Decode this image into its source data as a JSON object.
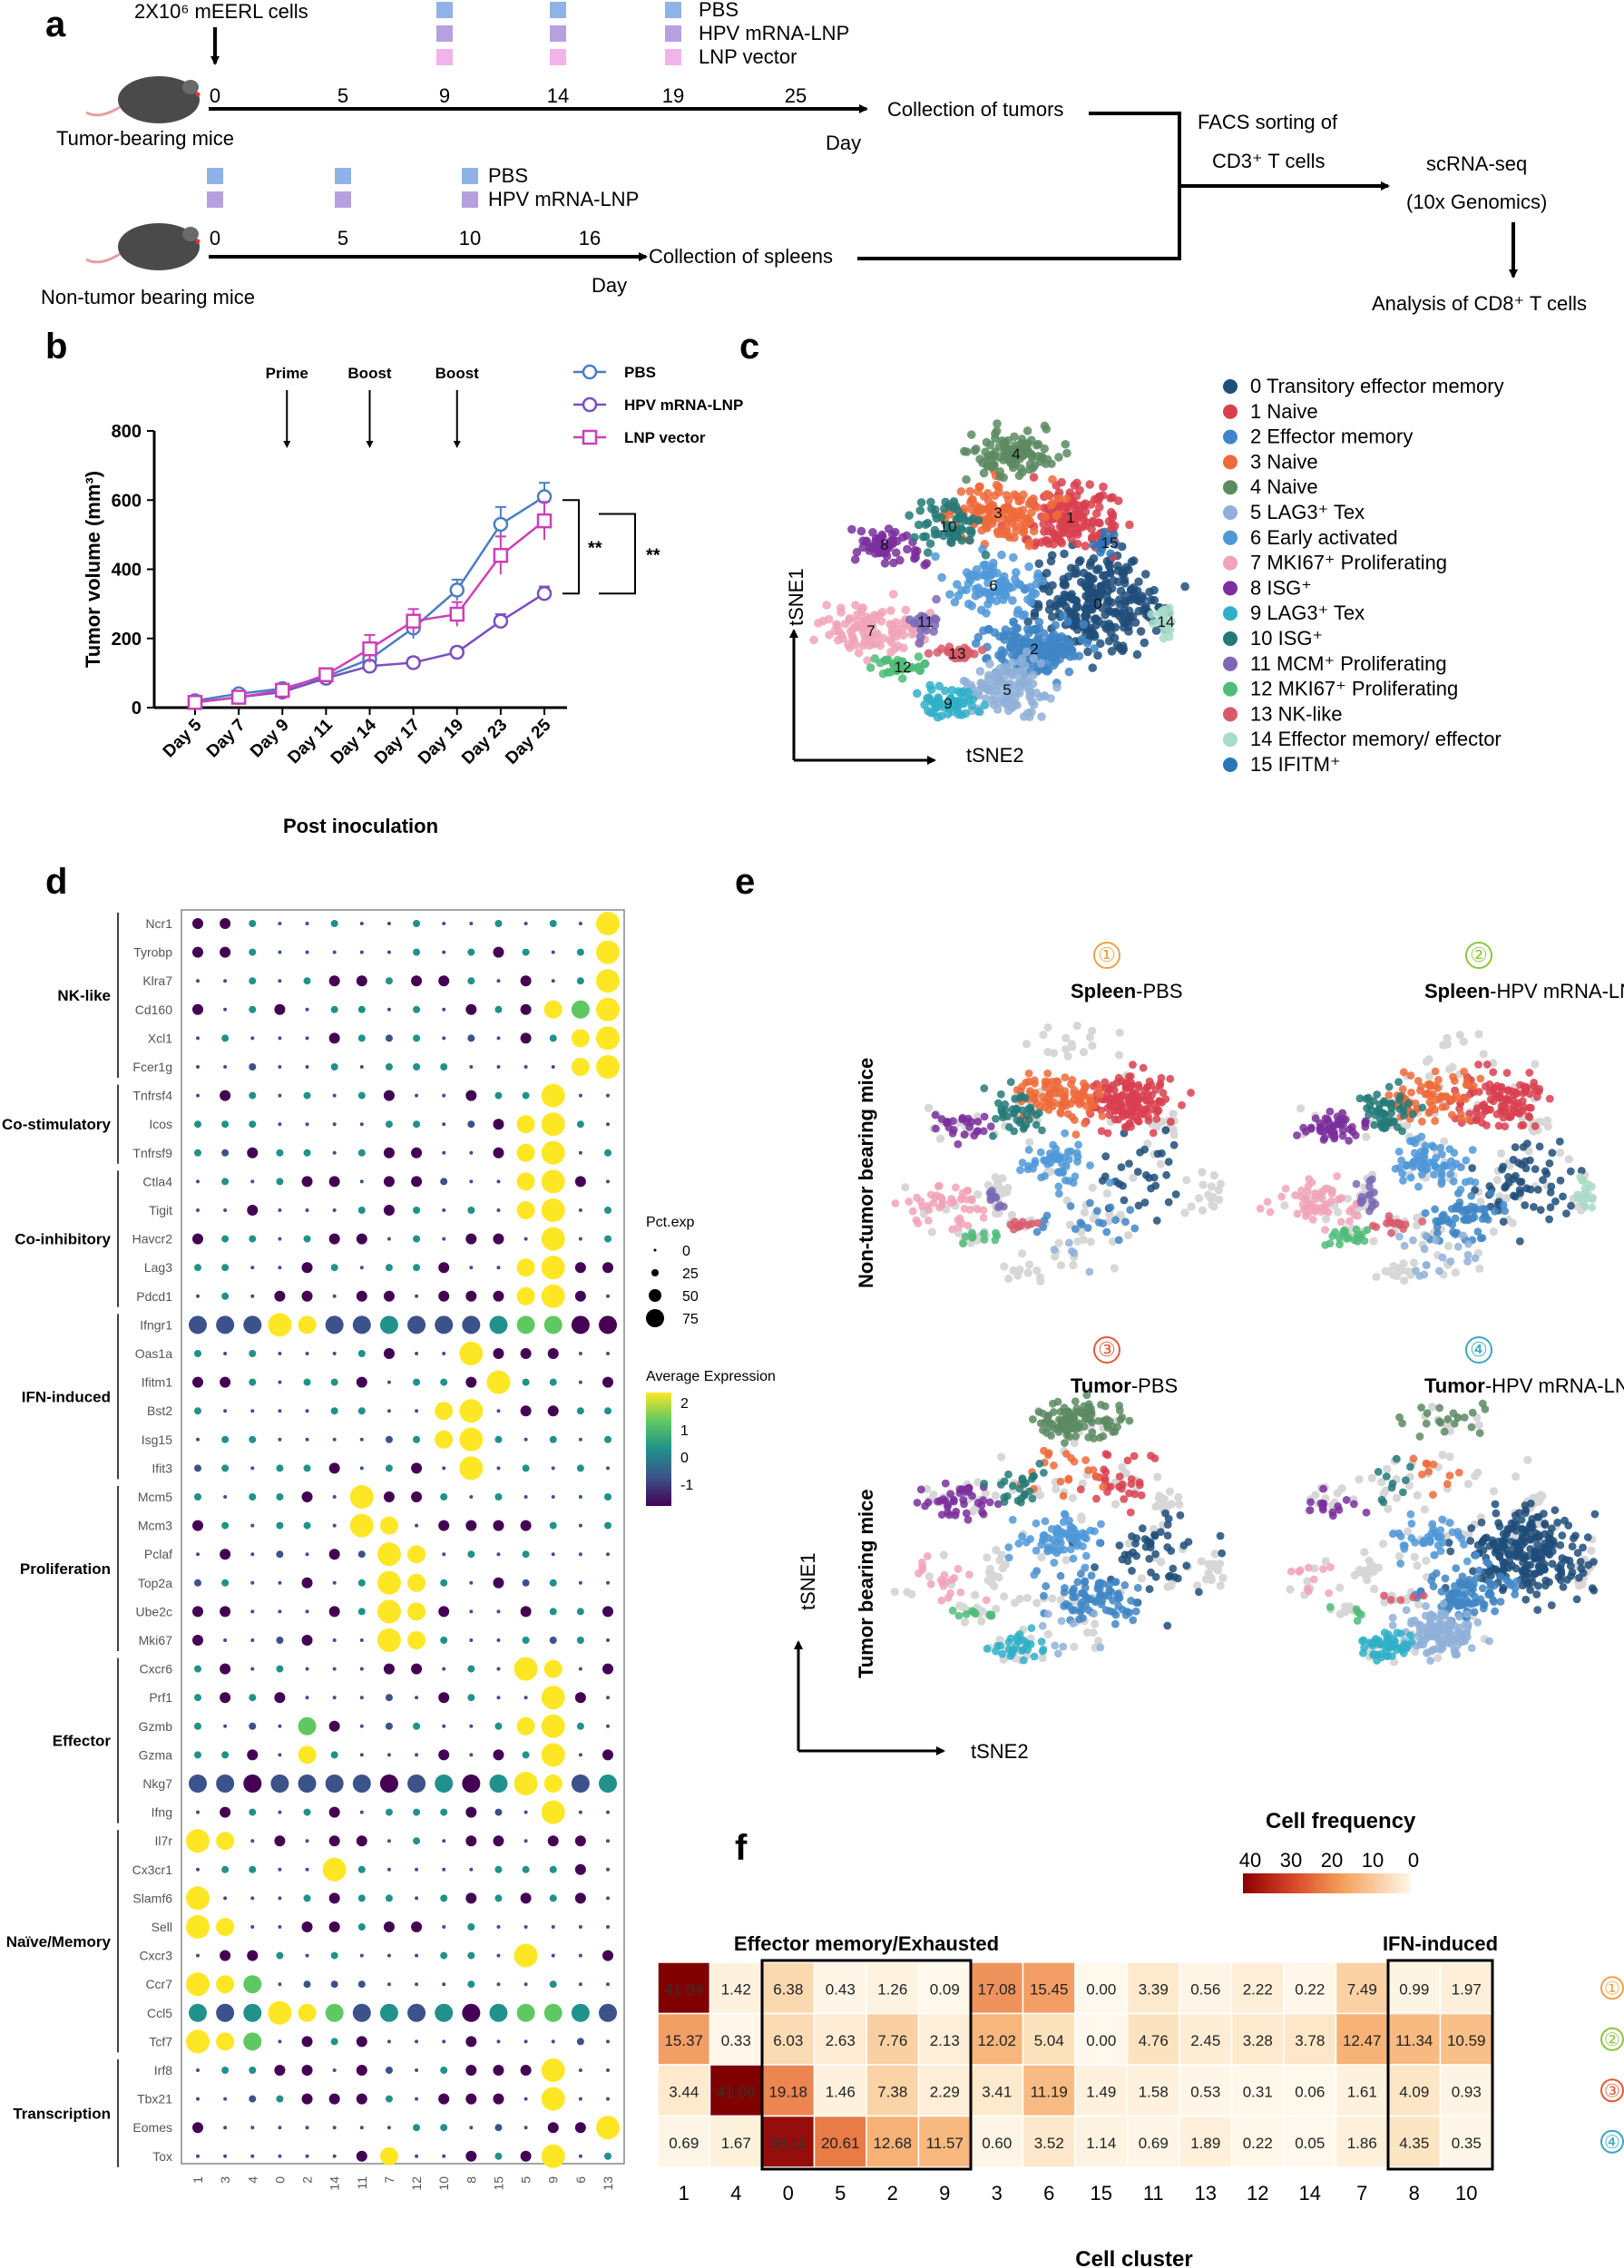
{
  "panel_labels": {
    "a": "a",
    "b": "b",
    "c": "c",
    "d": "d",
    "e": "e",
    "f": "f"
  },
  "panel_a": {
    "cells_label": "2X10⁶ mEERL cells",
    "legend_top": [
      "PBS",
      "HPV mRNA-LNP",
      "LNP vector"
    ],
    "legend_bottom": [
      "PBS",
      "HPV mRNA-LNP"
    ],
    "legend_colors": [
      "#8fb3e6",
      "#b7a0e0",
      "#f2b3ea"
    ],
    "tumor_days": [
      "0",
      "5",
      "9",
      "14",
      "19",
      "25"
    ],
    "spleen_days": [
      "0",
      "5",
      "10",
      "16"
    ],
    "day_label": "Day",
    "tumor_mice_label": "Tumor-bearing mice",
    "nontumor_mice_label": "Non-tumor bearing mice",
    "collect_tumors": "Collection of tumors",
    "collect_spleens": "Collection of spleens",
    "facs_line1": "FACS sorting of",
    "facs_line2": "CD3⁺ T cells",
    "scrna_line1": "scRNA-seq",
    "scrna_line2": "(10x Genomics)",
    "analysis": "Analysis of CD8⁺ T cells"
  },
  "panel_b": {
    "events": [
      "Prime",
      "Boost",
      "Boost"
    ],
    "significance": [
      "**",
      "**"
    ],
    "chart_data": {
      "type": "line",
      "ylabel": "Tumor volume (mm³)",
      "xlabel": "Post inoculation",
      "categories": [
        "Day 5",
        "Day 7",
        "Day 9",
        "Day 11",
        "Day 14",
        "Day 17",
        "Day 19",
        "Day 23",
        "Day 25"
      ],
      "ylim": [
        0,
        800
      ],
      "yticks": [
        "0",
        "200",
        "400",
        "600",
        "800"
      ],
      "series": [
        {
          "name": "PBS",
          "color": "#4a7fc1",
          "values": [
            20,
            40,
            55,
            90,
            140,
            230,
            340,
            530,
            610
          ],
          "err": [
            5,
            6,
            8,
            12,
            25,
            30,
            30,
            50,
            40
          ]
        },
        {
          "name": "HPV mRNA-LNP",
          "color": "#7a4fc0",
          "values": [
            15,
            30,
            45,
            85,
            120,
            130,
            160,
            250,
            330
          ],
          "err": [
            4,
            5,
            6,
            10,
            15,
            15,
            15,
            20,
            20
          ]
        },
        {
          "name": "LNP vector",
          "color": "#cc3fb8",
          "values": [
            15,
            30,
            50,
            95,
            170,
            250,
            270,
            440,
            540
          ],
          "err": [
            4,
            5,
            7,
            12,
            40,
            35,
            35,
            55,
            55
          ]
        }
      ]
    }
  },
  "panel_c": {
    "axis_y": "tSNE1",
    "axis_x": "tSNE2",
    "legend": [
      {
        "num": "0",
        "label": "Transitory effector memory",
        "color": "#1f4e79"
      },
      {
        "num": "1",
        "label": "Naive",
        "color": "#d9404f"
      },
      {
        "num": "2",
        "label": "Effector memory",
        "color": "#3f86c6"
      },
      {
        "num": "3",
        "label": "Naive",
        "color": "#ee6a3a"
      },
      {
        "num": "4",
        "label": "Naive",
        "color": "#5c8a61"
      },
      {
        "num": "5",
        "label": "LAG3⁺ Tex",
        "color": "#8fb0d8"
      },
      {
        "num": "6",
        "label": "Early activated",
        "color": "#4f98d8"
      },
      {
        "num": "7",
        "label": "MKI67⁺ Proliferating",
        "color": "#f1a3b8"
      },
      {
        "num": "8",
        "label": "ISG⁺",
        "color": "#7a2f9c"
      },
      {
        "num": "9",
        "label": "LAG3⁺ Tex",
        "color": "#30b0c8"
      },
      {
        "num": "10",
        "label": "ISG⁺",
        "color": "#247a78"
      },
      {
        "num": "11",
        "label": "MCM⁺ Proliferating",
        "color": "#7b68b5"
      },
      {
        "num": "12",
        "label": "MKI67⁺ Proliferating",
        "color": "#4fbc78"
      },
      {
        "num": "13",
        "label": "NK-like",
        "color": "#d9596a"
      },
      {
        "num": "14",
        "label": "Effector memory/ effector",
        "color": "#a8dcc8"
      },
      {
        "num": "15",
        "label": "IFITM⁺",
        "color": "#2a76b8"
      }
    ],
    "cluster_labels": [
      "4",
      "3",
      "1",
      "10",
      "8",
      "15",
      "6",
      "0",
      "7",
      "11",
      "13",
      "2",
      "14",
      "12",
      "5",
      "9"
    ]
  },
  "panel_d": {
    "genes": [
      "Ncr1",
      "Tyrobp",
      "Klra7",
      "Cd160",
      "Xcl1",
      "Fcer1g",
      "Tnfrsf4",
      "Icos",
      "Tnfrsf9",
      "Ctla4",
      "Tigit",
      "Havcr2",
      "Lag3",
      "Pdcd1",
      "Ifngr1",
      "Oas1a",
      "Ifitm1",
      "Bst2",
      "Isg15",
      "Ifit3",
      "Mcm5",
      "Mcm3",
      "Pclaf",
      "Top2a",
      "Ube2c",
      "Mki67",
      "Cxcr6",
      "Prf1",
      "Gzmb",
      "Gzma",
      "Nkg7",
      "Ifng",
      "Il7r",
      "Cx3cr1",
      "Slamf6",
      "Sell",
      "Cxcr3",
      "Ccr7",
      "Ccl5",
      "Tcf7",
      "Irf8",
      "Tbx21",
      "Eomes",
      "Tox"
    ],
    "clusters": [
      "1",
      "3",
      "4",
      "0",
      "2",
      "14",
      "11",
      "7",
      "12",
      "10",
      "8",
      "15",
      "5",
      "9",
      "6",
      "13"
    ],
    "groups": [
      {
        "name": "NK-like",
        "start": 0,
        "end": 5
      },
      {
        "name": "Co-stimulatory",
        "start": 6,
        "end": 8
      },
      {
        "name": "Co-inhibitory",
        "start": 9,
        "end": 13
      },
      {
        "name": "IFN-induced",
        "start": 14,
        "end": 19
      },
      {
        "name": "Proliferation",
        "start": 20,
        "end": 25
      },
      {
        "name": "Effector",
        "start": 26,
        "end": 31
      },
      {
        "name": "Naïve/Memory",
        "start": 32,
        "end": 39
      },
      {
        "name": "Transcription",
        "start": 40,
        "end": 43
      }
    ],
    "legend_size_title": "Pct.exp",
    "legend_size_values": [
      "0",
      "25",
      "50",
      "75"
    ],
    "legend_color_title": "Average Expression",
    "legend_color_values": [
      "2",
      "1",
      "0",
      "-1"
    ]
  },
  "panel_e": {
    "row_labels": [
      "Non-tumor bearing mice",
      "Tumor bearing mice"
    ],
    "panels": [
      {
        "num": "①",
        "bold": "Spleen",
        "rest": "-PBS",
        "color": "#f0a04b"
      },
      {
        "num": "②",
        "bold": "Spleen",
        "rest": "-HPV mRNA-LNP",
        "color": "#8cc63f"
      },
      {
        "num": "③",
        "bold": "Tumor",
        "rest": "-PBS",
        "color": "#e05a36"
      },
      {
        "num": "④",
        "bold": "Tumor",
        "rest": "-HPV mRNA-LNP",
        "color": "#3aa6c0"
      }
    ],
    "axis_y": "tSNE1",
    "axis_x": "tSNE2"
  },
  "panel_f": {
    "title": "Cell frequency",
    "scale_ticks": [
      "40",
      "30",
      "20",
      "10",
      "0"
    ],
    "group_labels": [
      "Effector memory/Exhausted",
      "IFN-induced"
    ],
    "columns": [
      "1",
      "4",
      "0",
      "5",
      "2",
      "9",
      "3",
      "6",
      "15",
      "11",
      "13",
      "12",
      "14",
      "7",
      "8",
      "10"
    ],
    "xlabel": "Cell cluster",
    "row_markers": [
      {
        "label": "①",
        "color": "#f0a04b"
      },
      {
        "label": "②",
        "color": "#8cc63f"
      },
      {
        "label": "③",
        "color": "#e05a36"
      },
      {
        "label": "④",
        "color": "#3aa6c0"
      }
    ],
    "values": [
      [
        "41.04",
        "1.42",
        "6.38",
        "0.43",
        "1.26",
        "0.09",
        "17.08",
        "15.45",
        "0.00",
        "3.39",
        "0.56",
        "2.22",
        "0.22",
        "7.49",
        "0.99",
        "1.97"
      ],
      [
        "15.37",
        "0.33",
        "6.03",
        "2.63",
        "7.76",
        "2.13",
        "12.02",
        "5.04",
        "0.00",
        "4.76",
        "2.45",
        "3.28",
        "3.78",
        "12.47",
        "11.34",
        "10.59"
      ],
      [
        "3.44",
        "41.06",
        "19.18",
        "1.46",
        "7.38",
        "2.29",
        "3.41",
        "11.19",
        "1.49",
        "1.58",
        "0.53",
        "0.31",
        "0.06",
        "1.61",
        "4.09",
        "0.93"
      ],
      [
        "0.69",
        "1.67",
        "38.11",
        "20.61",
        "12.68",
        "11.57",
        "0.60",
        "3.52",
        "1.14",
        "0.69",
        "1.89",
        "0.22",
        "0.05",
        "1.86",
        "4.35",
        "0.35"
      ]
    ]
  }
}
